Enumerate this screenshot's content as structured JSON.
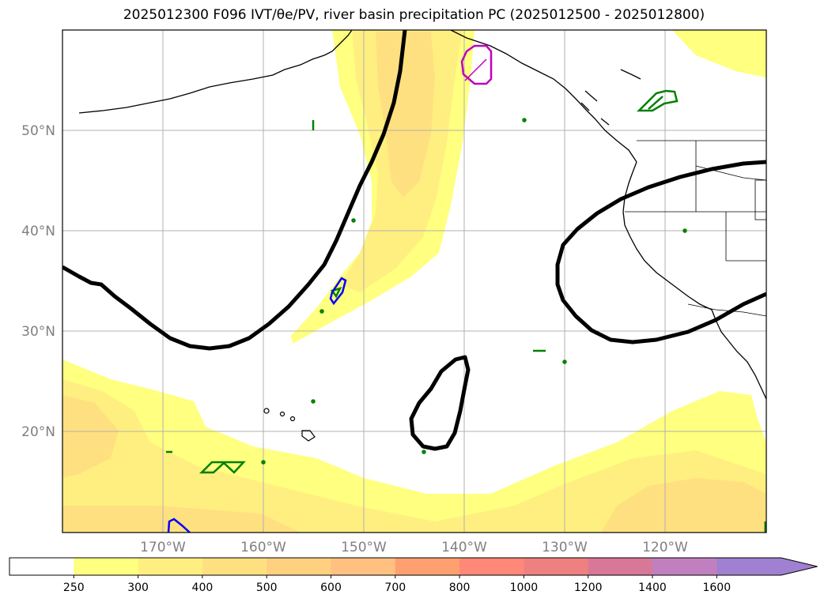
{
  "title": "2025012300 F096 IVT/θe/PV, river basin precipitation PC (2025012500 - 2025012800)",
  "lat_labels": [
    "50°N",
    "40°N",
    "30°N",
    "20°N"
  ],
  "lon_labels": [
    "170°W",
    "160°W",
    "150°W",
    "140°W",
    "130°W",
    "120°W"
  ],
  "colorbar": {
    "ticks": [
      "250",
      "300",
      "400",
      "500",
      "600",
      "700",
      "800",
      "1000",
      "1200",
      "1400",
      "1600"
    ],
    "colors": [
      "#ffffff",
      "#ffff80",
      "#ffef80",
      "#ffe080",
      "#ffd080",
      "#ffc080",
      "#ffa070",
      "#ff8878",
      "#ee8080",
      "#d87898",
      "#c080c0",
      "#a080d0"
    ]
  },
  "colors": {
    "coast": "#000000",
    "contour": "#000000",
    "green_region": "#008000",
    "blue_region": "#0000ff",
    "magenta_region": "#c000c0",
    "grid": "#b0b0b0"
  }
}
